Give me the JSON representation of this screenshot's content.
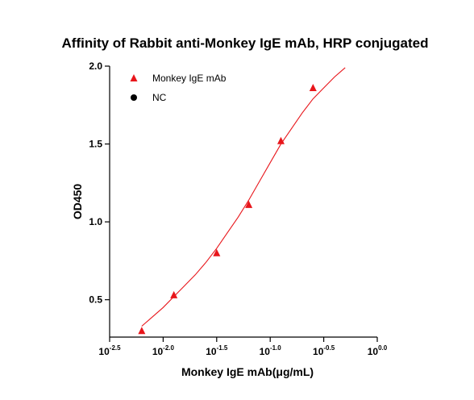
{
  "chart_data": {
    "type": "scatter",
    "title": "Affinity of  Rabbit anti-Monkey IgE mAb, HRP conjugated",
    "xlabel": "Monkey IgE mAb(μg/mL)",
    "ylabel": "OD450",
    "x_scale": "log10",
    "xlim": [
      -2.5,
      0.0
    ],
    "ylim": [
      0.26,
      2.0
    ],
    "x_ticks": [
      {
        "base": "10",
        "exp": "-2.5",
        "value": -2.5
      },
      {
        "base": "10",
        "exp": "-2.0",
        "value": -2.0
      },
      {
        "base": "10",
        "exp": "-1.5",
        "value": -1.5
      },
      {
        "base": "10",
        "exp": "-1.0",
        "value": -1.0
      },
      {
        "base": "10",
        "exp": "-0.5",
        "value": -0.5
      },
      {
        "base": "10",
        "exp": "0.0",
        "value": 0.0
      }
    ],
    "y_ticks": [
      {
        "label": "0.5",
        "value": 0.5
      },
      {
        "label": "1.0",
        "value": 1.0
      },
      {
        "label": "1.5",
        "value": 1.5
      },
      {
        "label": "2.0",
        "value": 2.0
      }
    ],
    "series": [
      {
        "name": "Monkey IgE mAb",
        "marker": "triangle",
        "color": "#e8161b",
        "x_log10": [
          -2.2,
          -1.9,
          -1.5,
          -1.2,
          -0.9,
          -0.6
        ],
        "y": [
          0.3,
          0.53,
          0.8,
          1.11,
          1.52,
          1.86
        ]
      },
      {
        "name": "NC",
        "marker": "circle",
        "color": "#000000",
        "x_log10": [],
        "y": []
      }
    ],
    "fit_curve": {
      "color": "#e8161b",
      "x_log10": [
        -2.2,
        -2.1,
        -2.0,
        -1.9,
        -1.8,
        -1.7,
        -1.6,
        -1.5,
        -1.4,
        -1.3,
        -1.2,
        -1.1,
        -1.0,
        -0.9,
        -0.8,
        -0.7,
        -0.6,
        -0.5,
        -0.4,
        -0.3
      ],
      "y": [
        0.33,
        0.39,
        0.45,
        0.52,
        0.59,
        0.66,
        0.74,
        0.83,
        0.93,
        1.03,
        1.14,
        1.26,
        1.38,
        1.5,
        1.6,
        1.7,
        1.79,
        1.86,
        1.93,
        1.99
      ]
    },
    "legend_position": "top-left",
    "grid": false
  }
}
